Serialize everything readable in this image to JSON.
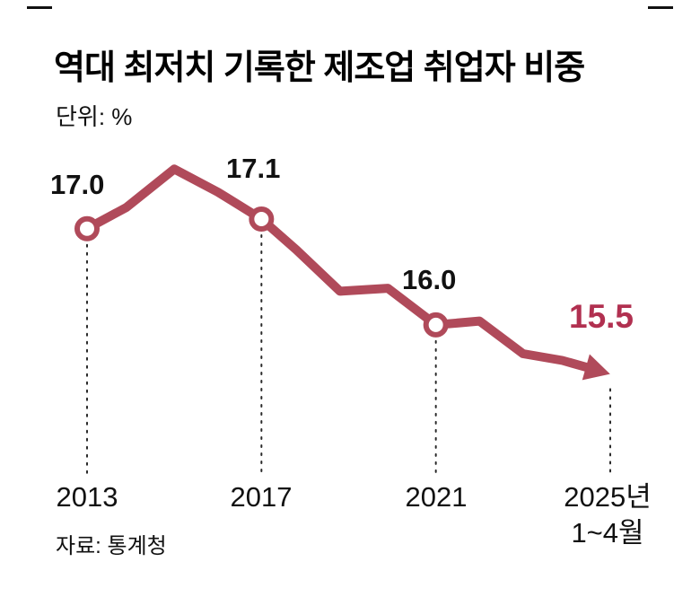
{
  "chart_data": {
    "type": "line",
    "title": "역대 최저치 기록한 제조업 취업자 비중",
    "unit_label": "단위: %",
    "source": "자료: 통계청",
    "x_range": [
      2013,
      2025
    ],
    "y_range": [
      15.0,
      17.8
    ],
    "grid": false,
    "legend": "none",
    "series": [
      {
        "name": "제조업 취업자 비중",
        "points": [
          [
            2013.0,
            17.0
          ],
          [
            2013.9,
            17.22
          ],
          [
            2015.0,
            17.62
          ],
          [
            2016.0,
            17.38
          ],
          [
            2017.0,
            17.1
          ],
          [
            2017.8,
            16.78
          ],
          [
            2018.8,
            16.35
          ],
          [
            2019.9,
            16.38
          ],
          [
            2021.0,
            16.0
          ],
          [
            2022.0,
            16.04
          ],
          [
            2023.0,
            15.7
          ],
          [
            2023.9,
            15.63
          ],
          [
            2024.6,
            15.54
          ]
        ]
      }
    ],
    "markers": [
      {
        "x": 2013,
        "value": 17.0
      },
      {
        "x": 2017,
        "value": 17.1
      },
      {
        "x": 2021,
        "value": 16.0
      }
    ],
    "point_labels": [
      {
        "text": "17.0",
        "x": 2013,
        "value": 17.0
      },
      {
        "text": "17.1",
        "x": 2017,
        "value": 17.1
      },
      {
        "text": "16.0",
        "x": 2021,
        "value": 16.0
      },
      {
        "text": "15.5",
        "x": 2025,
        "value": 15.5,
        "accent": true
      }
    ],
    "x_ticks": [
      {
        "label": "2013",
        "x": 2013
      },
      {
        "label": "2017",
        "x": 2017
      },
      {
        "label": "2021",
        "x": 2021
      },
      {
        "label": "2025년",
        "sub": "1~4월",
        "x": 2025
      }
    ],
    "colors": {
      "line": "#b04a5a",
      "accent": "#b13050",
      "guide": "#2a2a2a",
      "text": "#111111"
    }
  }
}
